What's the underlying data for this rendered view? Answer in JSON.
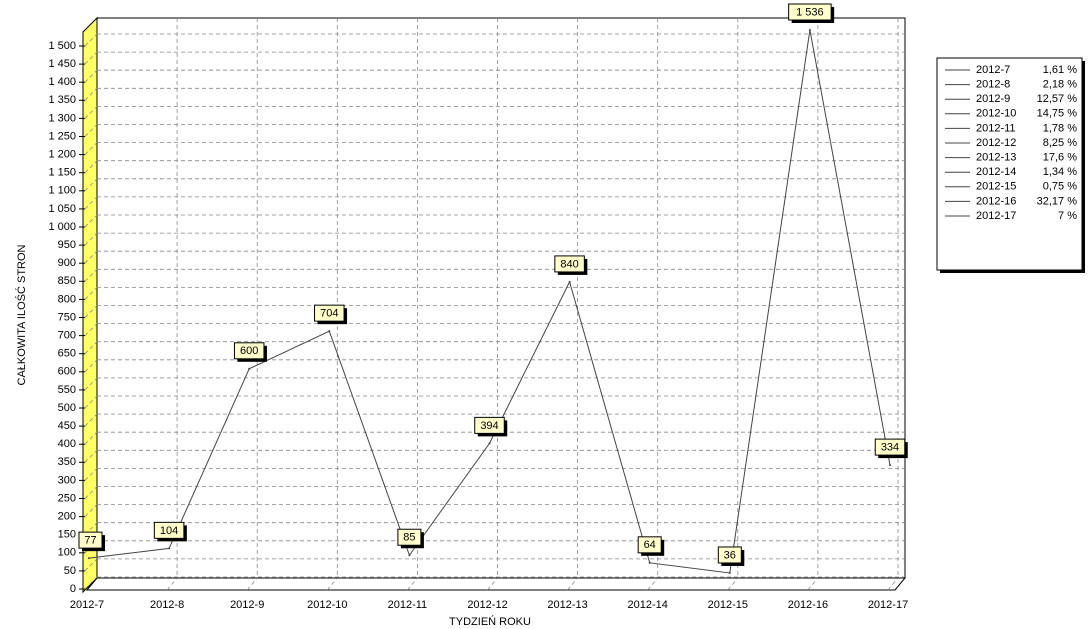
{
  "chart_data": {
    "type": "line",
    "y_label": "CAŁKOWITA ILOŚĆ STRON",
    "x_label": "TYDZIEŃ ROKU",
    "categories": [
      "2012-7",
      "2012-8",
      "2012-9",
      "2012-10",
      "2012-11",
      "2012-12",
      "2012-13",
      "2012-14",
      "2012-15",
      "2012-16",
      "2012-17"
    ],
    "series": [
      {
        "name": "CAŁKOWITA ILOŚĆ STRON",
        "color": "#444444",
        "values": [
          77,
          104,
          600,
          704,
          85,
          394,
          840,
          64,
          36,
          1536,
          334
        ],
        "value_labels": [
          "77",
          "104",
          "600",
          "704",
          "85",
          "394",
          "840",
          "64",
          "36",
          "1 536",
          "334"
        ]
      }
    ],
    "ylim": [
      0,
      1500
    ],
    "yticks": [
      0,
      50,
      100,
      150,
      200,
      250,
      300,
      350,
      400,
      450,
      500,
      550,
      600,
      650,
      700,
      750,
      800,
      850,
      900,
      950,
      {
        "value": 1000,
        "label": "1 000"
      },
      {
        "value": 1050,
        "label": "1 050"
      },
      {
        "value": 1100,
        "label": "1 100"
      },
      {
        "value": 1150,
        "label": "1 150"
      },
      {
        "value": 1200,
        "label": "1 200"
      },
      {
        "value": 1250,
        "label": "1 250"
      },
      {
        "value": 1300,
        "label": "1 300"
      },
      {
        "value": 1350,
        "label": "1 350"
      },
      {
        "value": 1400,
        "label": "1 400"
      },
      {
        "value": 1450,
        "label": "1 450"
      },
      {
        "value": 1500,
        "label": "1 500"
      }
    ],
    "grid": true,
    "legend_position": "right",
    "legend": [
      {
        "label": "2012-7",
        "share": {
          "value": 1.61,
          "label": "1,61 %"
        }
      },
      {
        "label": "2012-8",
        "share": {
          "value": 2.18,
          "label": "2,18 %"
        }
      },
      {
        "label": "2012-9",
        "share": {
          "value": 12.57,
          "label": "12,57 %"
        }
      },
      {
        "label": "2012-10",
        "share": {
          "value": 14.75,
          "label": "14,75 %"
        }
      },
      {
        "label": "2012-11",
        "share": {
          "value": 1.78,
          "label": "1,78 %"
        }
      },
      {
        "label": "2012-12",
        "share": {
          "value": 8.25,
          "label": "8,25 %"
        }
      },
      {
        "label": "2012-13",
        "share": {
          "value": 17.6,
          "label": "17,6 %"
        }
      },
      {
        "label": "2012-14",
        "share": {
          "value": 1.34,
          "label": "1,34 %"
        }
      },
      {
        "label": "2012-15",
        "share": {
          "value": 0.75,
          "label": "0,75 %"
        }
      },
      {
        "label": "2012-16",
        "share": {
          "value": 32.17,
          "label": "32,17 %"
        }
      },
      {
        "label": "2012-17",
        "share": {
          "value": 7,
          "label": "7 %"
        }
      }
    ]
  }
}
